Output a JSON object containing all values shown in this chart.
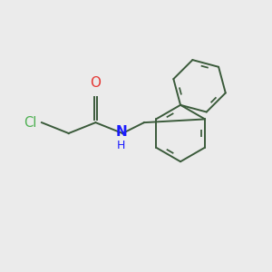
{
  "background_color": "#ebebeb",
  "bond_color": "#3a5a3a",
  "cl_color": "#4caf50",
  "o_color": "#e53935",
  "n_color": "#1a1aff",
  "line_width": 1.4,
  "figsize": [
    3.0,
    3.0
  ],
  "dpi": 100,
  "xlim": [
    0,
    10
  ],
  "ylim": [
    0,
    10
  ]
}
